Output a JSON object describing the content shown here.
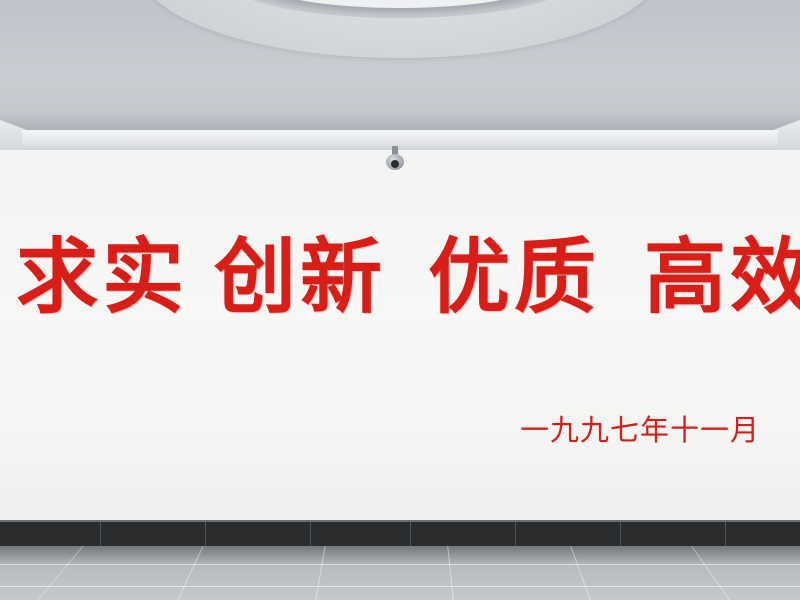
{
  "slogan": {
    "words": [
      "求实",
      "创新",
      "优质",
      "高效"
    ]
  },
  "date_text": "一九九七年十一月",
  "colors": {
    "lettering": "#d81e16",
    "wall": "#f5f5f4",
    "ceiling": "#c6cacf",
    "baseboard": "#2a2c2e"
  },
  "objects": {
    "camera": "security-camera-icon"
  }
}
